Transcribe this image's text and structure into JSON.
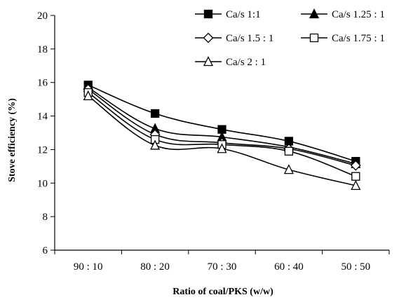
{
  "chart_data": {
    "type": "line",
    "title": "",
    "xlabel": "Ratio of coal/PKS (w/w)",
    "ylabel": "Stove efficiency (%)",
    "categories": [
      "90 : 10",
      "80 : 20",
      "70 : 30",
      "60 : 40",
      "50 : 50"
    ],
    "ylim": [
      6,
      20
    ],
    "yticks": [
      "6",
      "8",
      "10",
      "12",
      "14",
      "16",
      "18",
      "20"
    ],
    "grid": false,
    "legend_position": "top-right",
    "series": [
      {
        "name": "Ca/s 1:1",
        "marker": "filled-square",
        "color": "#000000",
        "values": [
          15.85,
          14.15,
          13.2,
          12.5,
          11.3
        ]
      },
      {
        "name": "Ca/s 1.25 : 1",
        "marker": "filled-triangle",
        "color": "#000000",
        "values": [
          15.7,
          13.25,
          12.75,
          12.15,
          11.15
        ]
      },
      {
        "name": "Ca/s 1.5 : 1",
        "marker": "open-diamond",
        "color": "#000000",
        "values": [
          15.6,
          12.9,
          12.4,
          12.05,
          11.05
        ]
      },
      {
        "name": "Ca/s 1.75 : 1",
        "marker": "open-square",
        "color": "#000000",
        "values": [
          15.4,
          12.6,
          12.3,
          11.9,
          10.4
        ]
      },
      {
        "name": "Ca/s 2 : 1",
        "marker": "open-triangle",
        "color": "#000000",
        "values": [
          15.2,
          12.25,
          12.05,
          10.8,
          9.85
        ]
      }
    ]
  }
}
